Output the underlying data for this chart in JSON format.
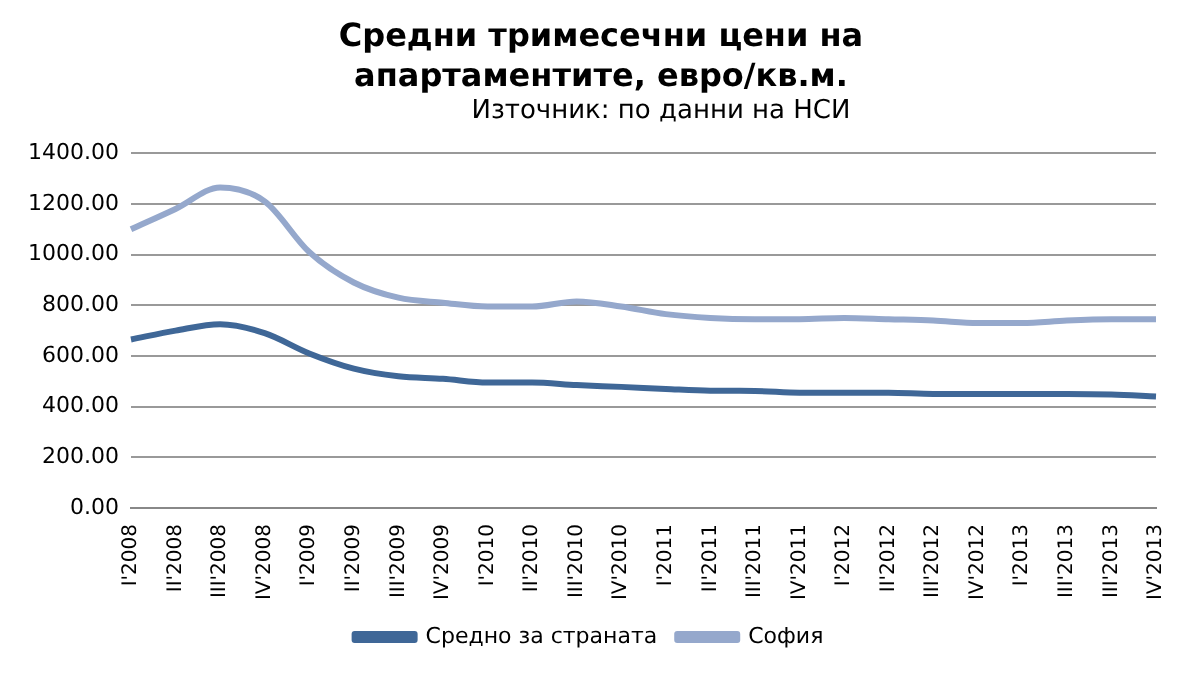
{
  "chart_data": {
    "type": "line",
    "title": "Средни тримесечни цени на апартаментите, евро/кв.м.",
    "annotations": [
      "Източник: по данни на НСИ"
    ],
    "categories": [
      "I'2008",
      "II'2008",
      "III'2008",
      "IV'2008",
      "I'2009",
      "II'2009",
      "III'2009",
      "IV'2009",
      "I'2010",
      "II'2010",
      "III'2010",
      "IV'2010",
      "I'2011",
      "II'2011",
      "III'2011",
      "IV'2011",
      "I'2012",
      "II'2012",
      "III'2012",
      "IV'2012",
      "I'2013",
      "III'2013",
      "III'2013",
      "IV'2013"
    ],
    "series": [
      {
        "name": "Средно за страната",
        "color": "#3f6797",
        "values": [
          665,
          700,
          725,
          690,
          610,
          550,
          520,
          510,
          495,
          495,
          485,
          478,
          470,
          463,
          462,
          455,
          455,
          455,
          450,
          450,
          450,
          450,
          448,
          440
        ]
      },
      {
        "name": "София",
        "color": "#95a8cc",
        "values": [
          1100,
          1180,
          1265,
          1210,
          1010,
          890,
          830,
          810,
          795,
          795,
          815,
          795,
          765,
          750,
          745,
          745,
          750,
          745,
          740,
          730,
          730,
          740,
          745,
          745
        ]
      }
    ],
    "ylim": [
      0,
      1400
    ],
    "yticks": [
      {
        "value": 0,
        "label": "0.00"
      },
      {
        "value": 200,
        "label": "200.00"
      },
      {
        "value": 400,
        "label": "400.00"
      },
      {
        "value": 600,
        "label": "600.00"
      },
      {
        "value": 800,
        "label": "800.00"
      },
      {
        "value": 1000,
        "label": "1000.00"
      },
      {
        "value": 1200,
        "label": "1200.00"
      },
      {
        "value": 1400,
        "label": "1400.00"
      }
    ],
    "grid": "y",
    "legend": "bottom",
    "marker": "none",
    "line_style": "solid"
  }
}
